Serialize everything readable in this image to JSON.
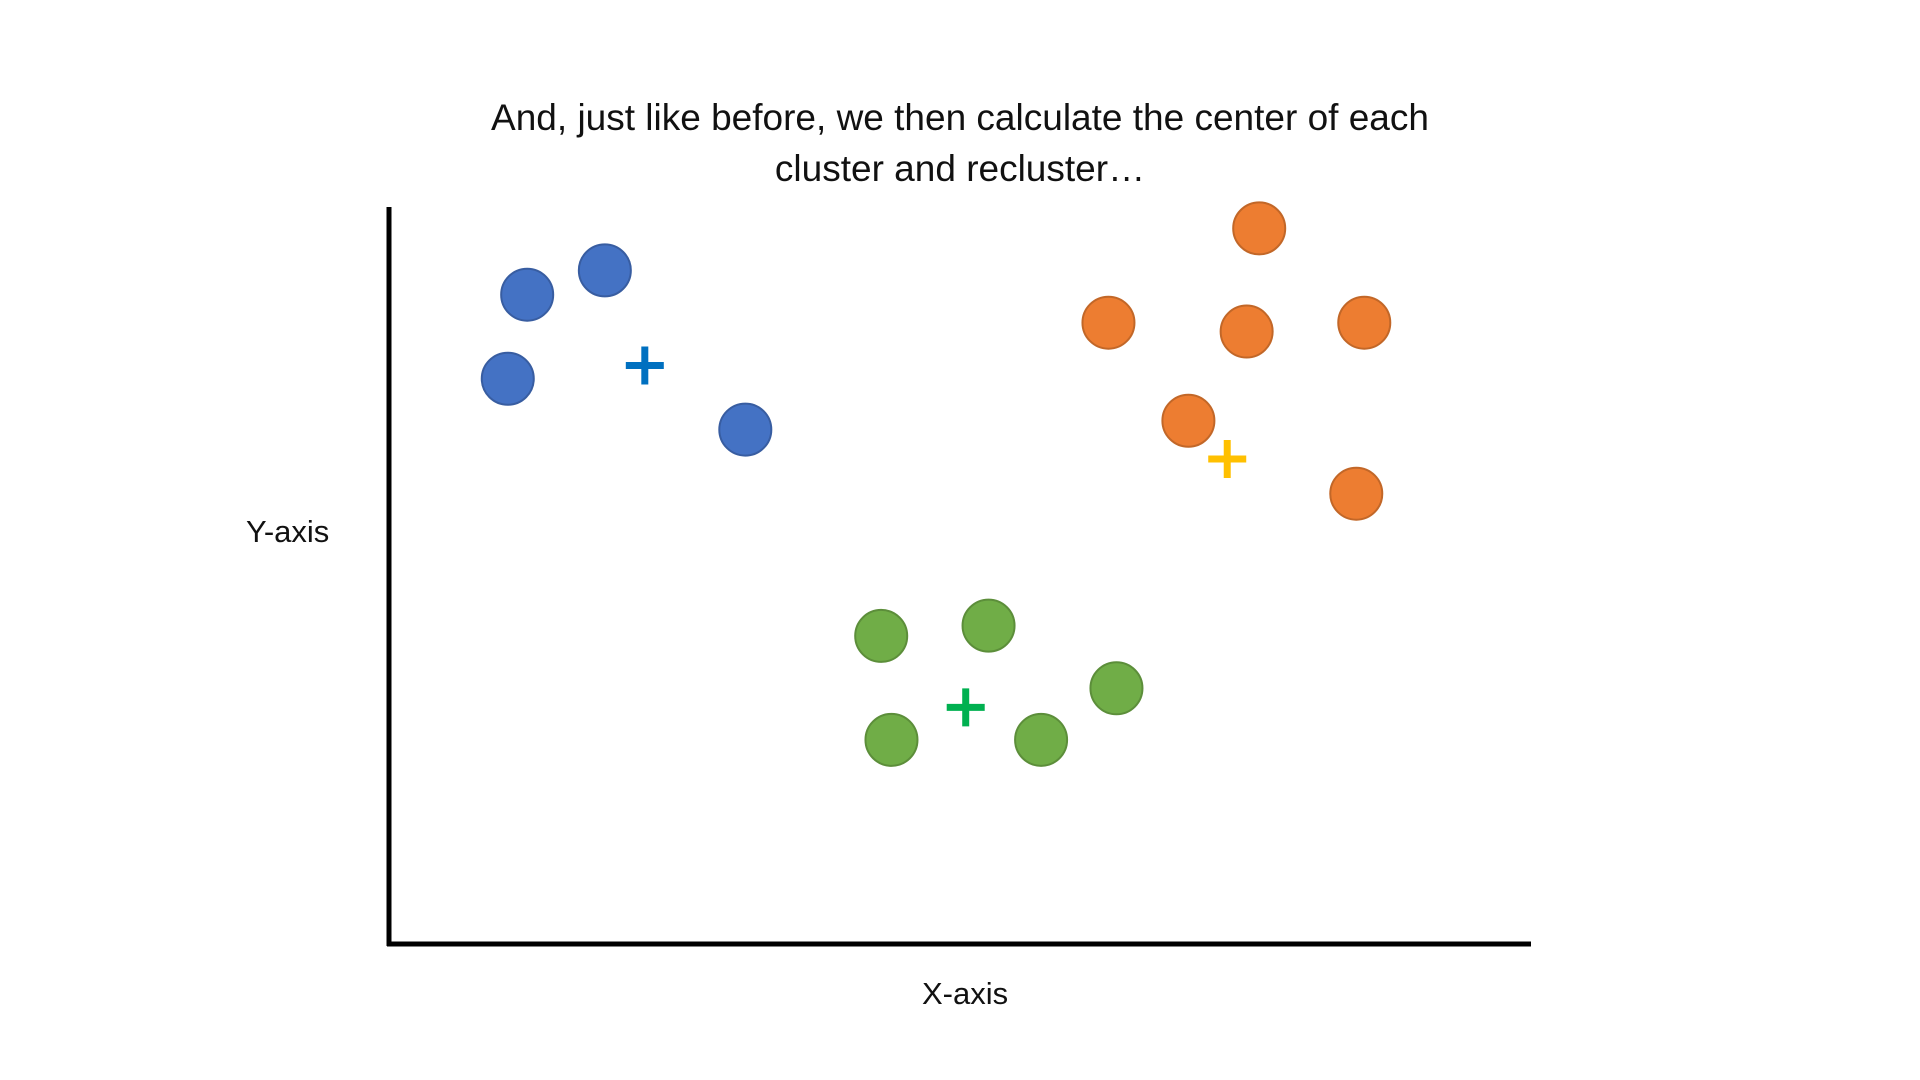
{
  "title_lines": [
    "And, just like before, we then calculate the center of each",
    "cluster and recluster…"
  ],
  "chart_data": {
    "type": "scatter",
    "title": "And, just like before, we then calculate the center of each cluster and recluster…",
    "xlabel": "X-axis",
    "ylabel": "Y-axis",
    "xlim": [
      0,
      100
    ],
    "ylim": [
      0,
      100
    ],
    "grid": false,
    "legend": "none",
    "series": [
      {
        "color": "#4472C4",
        "points": [
          [
            12.1,
            88.1
          ],
          [
            18.9,
            91.4
          ],
          [
            10.4,
            76.7
          ],
          [
            31.2,
            69.8
          ]
        ],
        "center": [
          22.4,
          78.5
        ],
        "center_color": "#0070C0"
      },
      {
        "color": "#ED7D31",
        "points": [
          [
            76.2,
            97.1
          ],
          [
            63.0,
            84.3
          ],
          [
            75.1,
            83.1
          ],
          [
            85.4,
            84.3
          ],
          [
            70.0,
            71.0
          ],
          [
            84.7,
            61.1
          ]
        ],
        "center": [
          73.4,
          65.8
        ],
        "center_color": "#FFC000"
      },
      {
        "color": "#70AD47",
        "points": [
          [
            43.1,
            41.8
          ],
          [
            52.5,
            43.2
          ],
          [
            63.7,
            34.7
          ],
          [
            44.0,
            27.7
          ],
          [
            57.1,
            27.7
          ]
        ],
        "center": [
          50.5,
          32.1
        ],
        "center_color": "#00B050"
      }
    ]
  }
}
